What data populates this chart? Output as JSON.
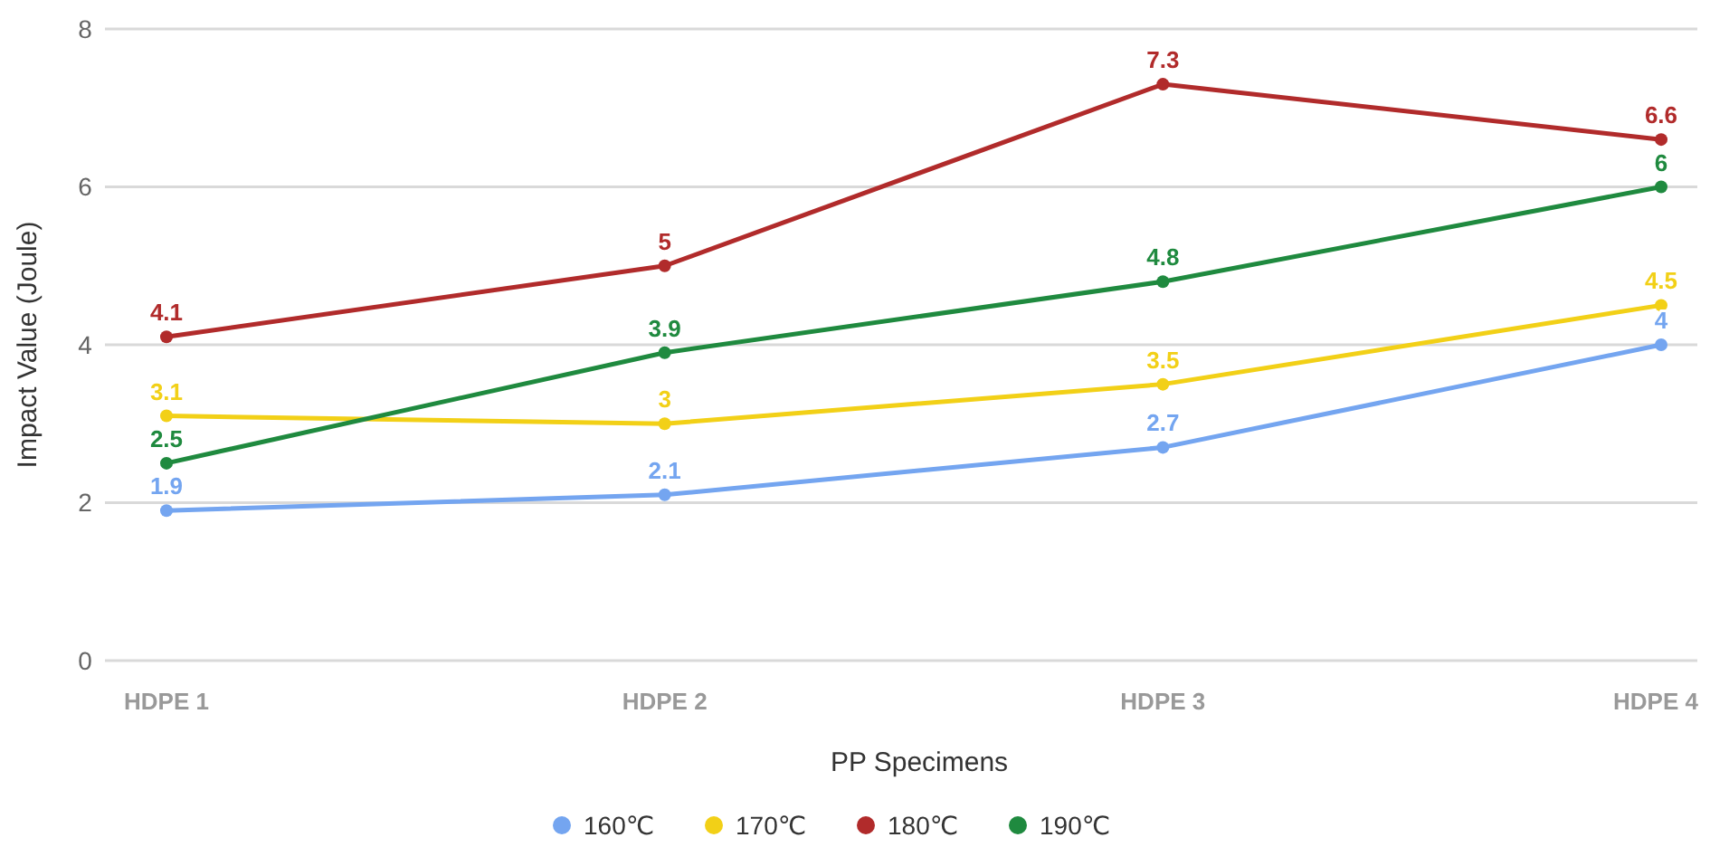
{
  "chart_data": {
    "type": "line",
    "xlabel": "PP Specimens",
    "ylabel": "Impact Value (Joule)",
    "categories": [
      "HDPE 1",
      "HDPE 2",
      "HDPE 3",
      "HDPE 4"
    ],
    "series": [
      {
        "name": "160℃",
        "color": "#74a5f0",
        "values": [
          1.9,
          2.1,
          2.7,
          4
        ]
      },
      {
        "name": "170℃",
        "color": "#f2d017",
        "values": [
          3.1,
          3,
          3.5,
          4.5
        ]
      },
      {
        "name": "180℃",
        "color": "#b12b2b",
        "values": [
          4.1,
          5,
          7.3,
          6.6
        ]
      },
      {
        "name": "190℃",
        "color": "#1f8a3f",
        "values": [
          2.5,
          3.9,
          4.8,
          6
        ]
      }
    ],
    "ylim": [
      0,
      8
    ],
    "yticks": [
      0,
      2,
      4,
      6,
      8
    ],
    "grid": "y",
    "legend": "bottom",
    "marker": "circle",
    "line_style": "solid",
    "data_labels": true
  }
}
